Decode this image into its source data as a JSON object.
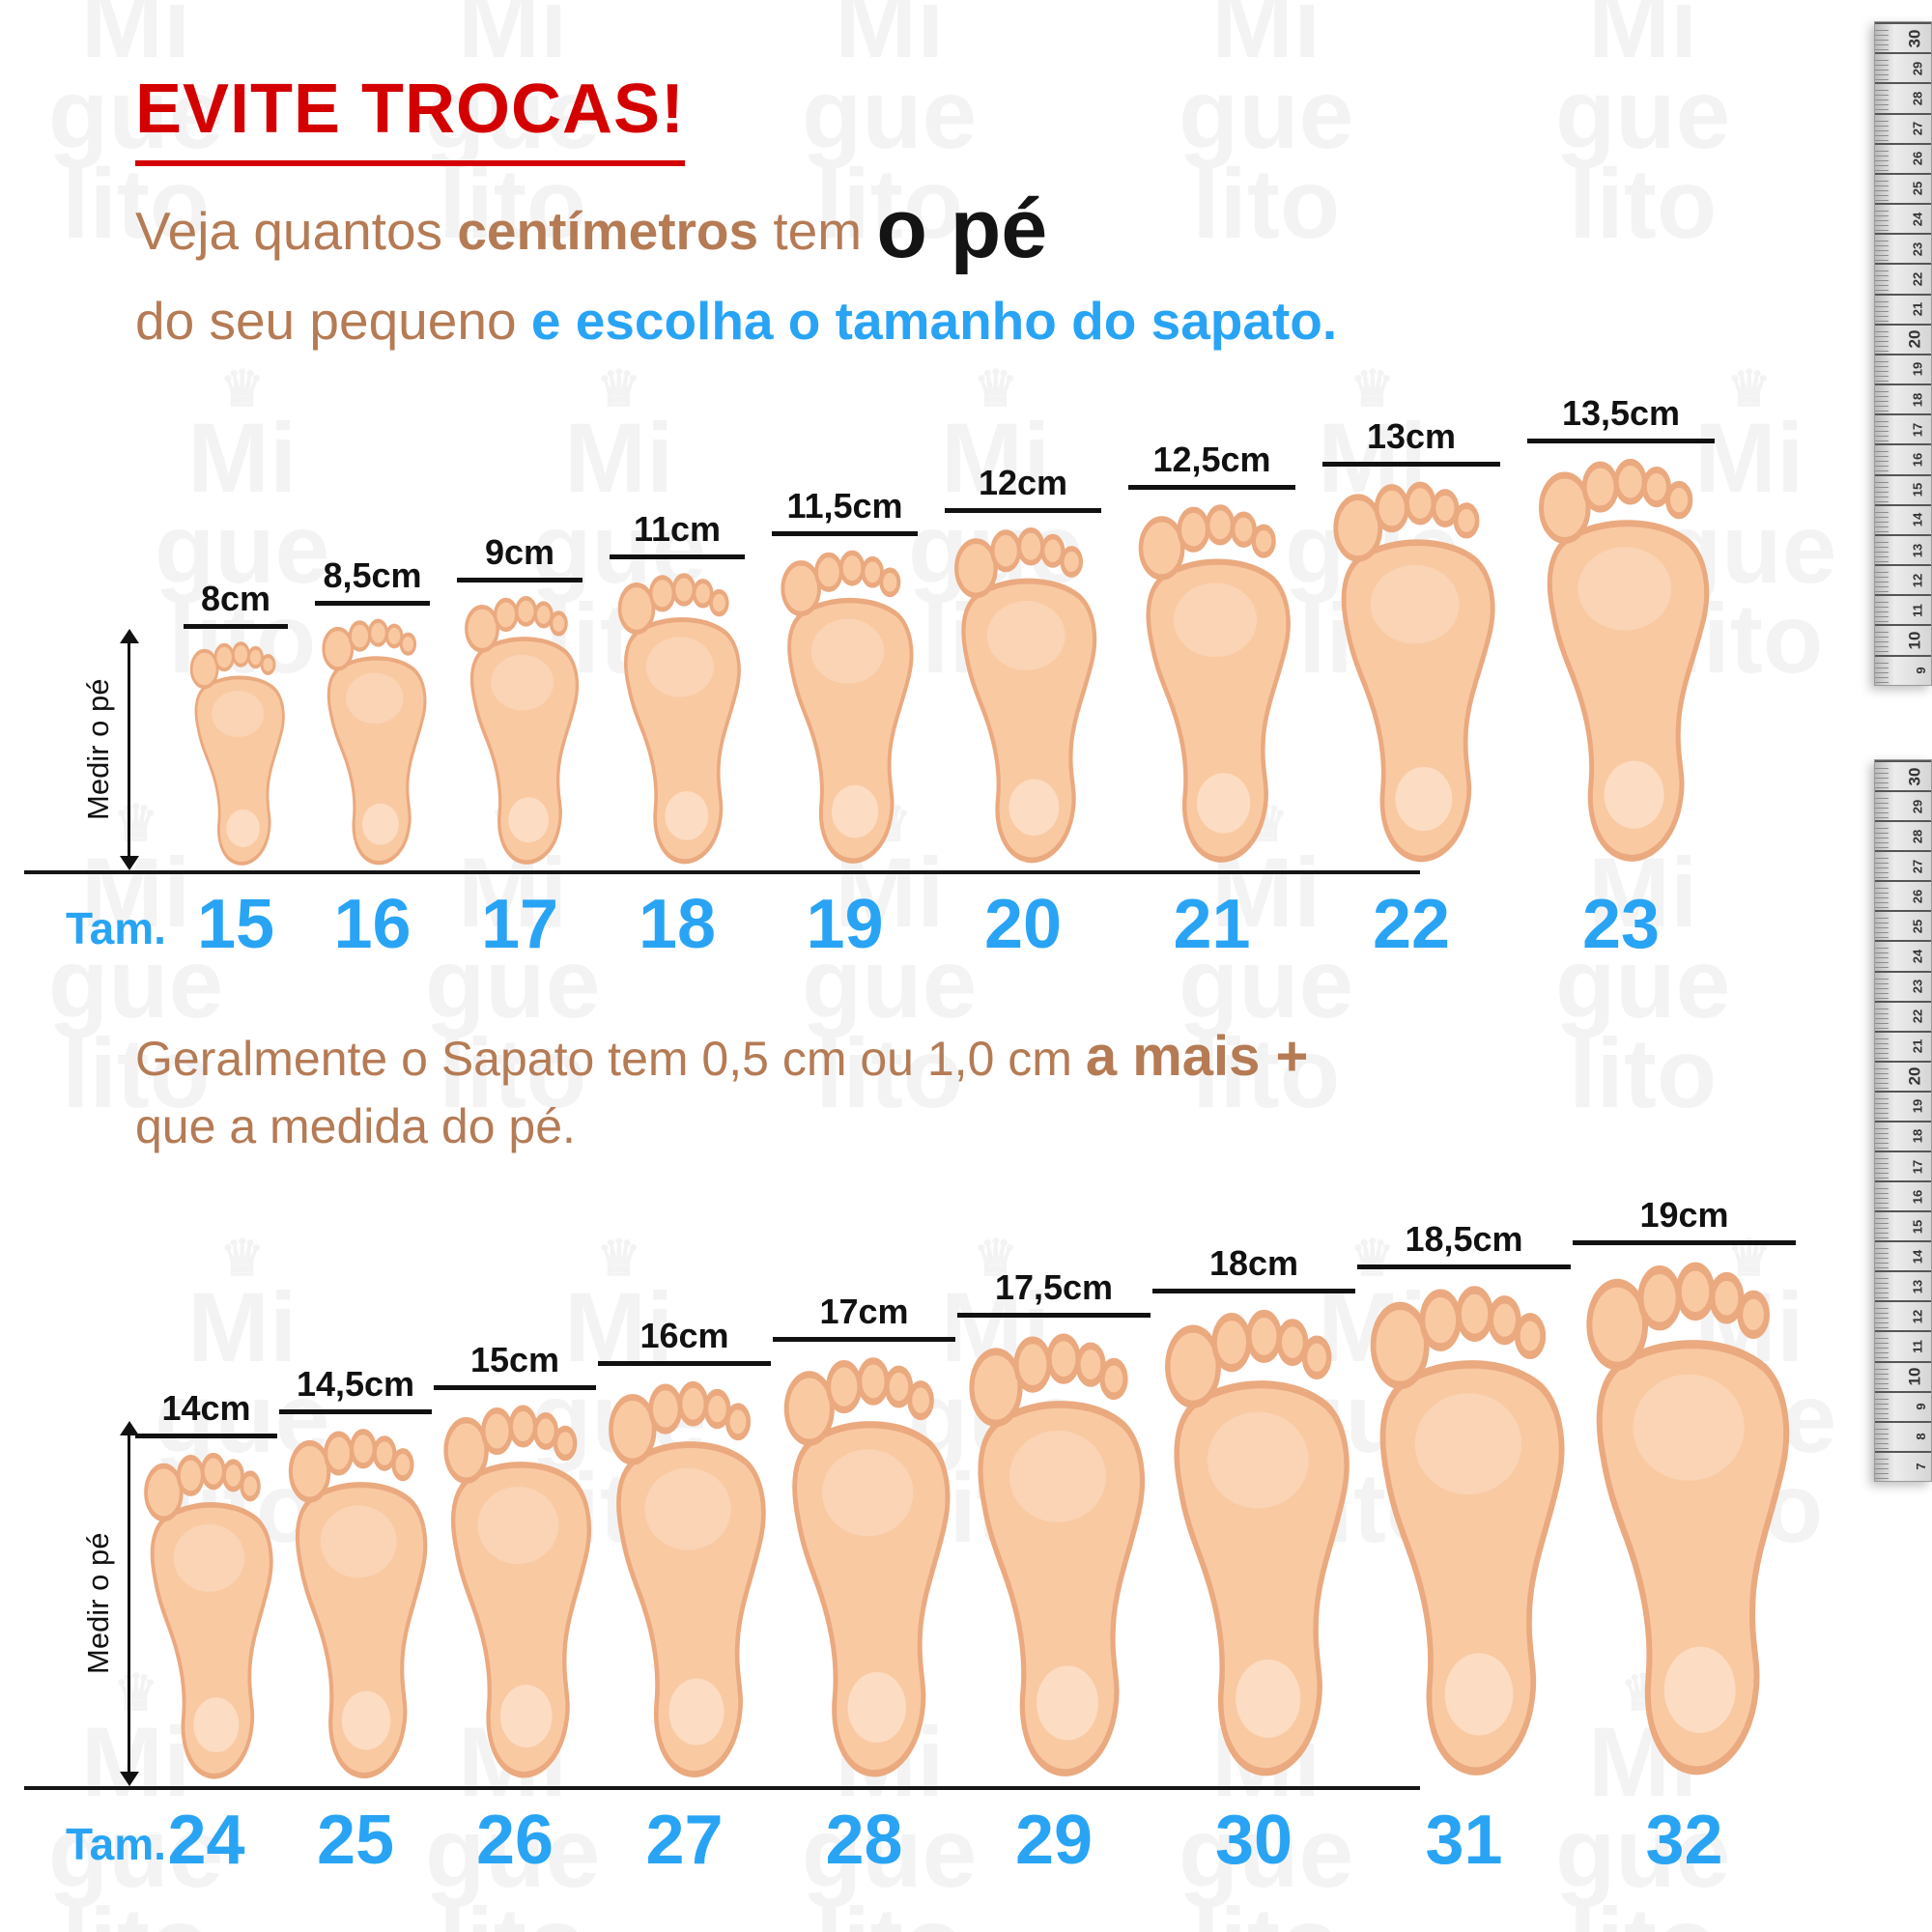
{
  "header": {
    "title": "EVITE TROCAS!",
    "line1_a": "Veja quantos ",
    "line1_b": "centímetros",
    "line1_c": " tem ",
    "line1_d": "o pé",
    "line2_a": "do seu pequeno ",
    "line2_b": "e escolha o tamanho do sapato."
  },
  "note": {
    "a": "Geralmente o Sapato tem 0,5 cm ou 1,0 cm ",
    "b": "a mais +",
    "c": "que a medida do pé."
  },
  "axis_label": "Medir o pé",
  "tam_label": "Tam.",
  "top_row": {
    "measurements": [
      "8cm",
      "8,5cm",
      "9cm",
      "11cm",
      "11,5cm",
      "12cm",
      "12,5cm",
      "13cm",
      "13,5cm"
    ],
    "sizes": [
      "15",
      "16",
      "17",
      "18",
      "19",
      "20",
      "21",
      "22",
      "23"
    ]
  },
  "bottom_row": {
    "measurements": [
      "14cm",
      "14,5cm",
      "15cm",
      "16cm",
      "17cm",
      "17,5cm",
      "18cm",
      "18,5cm",
      "19cm"
    ],
    "sizes": [
      "24",
      "25",
      "26",
      "27",
      "28",
      "29",
      "30",
      "31",
      "32"
    ]
  },
  "watermark": {
    "crown": "♛",
    "lines": [
      "Mi",
      "gue",
      "lito"
    ]
  },
  "ruler": {
    "top_number": 30
  },
  "colors": {
    "red": "#d40000",
    "brown": "#b57b55",
    "blue": "#29a4f5",
    "skin": "#f9c9a2",
    "skin_outline": "#eaa97f",
    "skin_light": "#fcdcc2",
    "line": "#151515"
  },
  "chart_data": [
    {
      "type": "table",
      "xlabel": "Tam.",
      "ylabel": "cm",
      "categories": [
        "15",
        "16",
        "17",
        "18",
        "19",
        "20",
        "21",
        "22",
        "23"
      ],
      "values": [
        8,
        8.5,
        9,
        11,
        11.5,
        12,
        12.5,
        13,
        13.5
      ]
    },
    {
      "type": "table",
      "xlabel": "Tam.",
      "ylabel": "cm",
      "categories": [
        "24",
        "25",
        "26",
        "27",
        "28",
        "29",
        "30",
        "31",
        "32"
      ],
      "values": [
        14,
        14.5,
        15,
        16,
        17,
        17.5,
        18,
        18.5,
        19
      ]
    }
  ]
}
